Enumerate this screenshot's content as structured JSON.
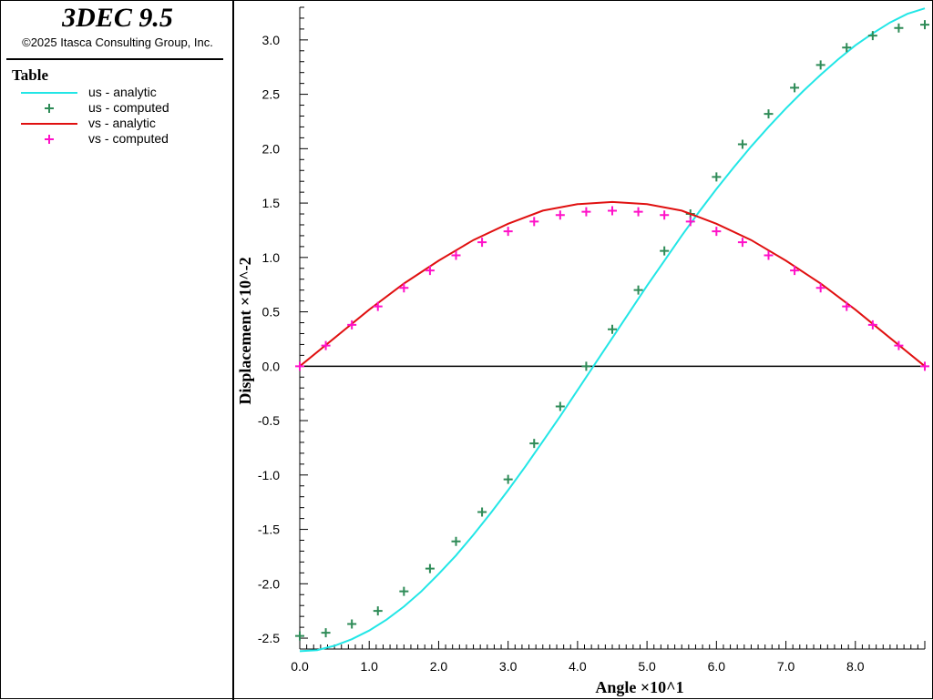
{
  "header": {
    "app_title": "3DEC 9.5",
    "copyright": "©2025 Itasca Consulting Group, Inc."
  },
  "legend": {
    "heading": "Table",
    "items": [
      {
        "label": "us - analytic",
        "kind": "line",
        "color": "#22e6e6"
      },
      {
        "label": "us - computed",
        "kind": "marker",
        "color": "#2e8b57"
      },
      {
        "label": "vs - analytic",
        "kind": "line",
        "color": "#e01010"
      },
      {
        "label": "vs - computed",
        "kind": "marker",
        "color": "#ff10c8"
      }
    ]
  },
  "chart_data": {
    "type": "line",
    "xlabel": "Angle ×10^1",
    "ylabel": "Displacement ×10^-2",
    "xlim": [
      0.0,
      9.0
    ],
    "ylim": [
      -2.6,
      3.3
    ],
    "xticks": [
      "0.0",
      "1.0",
      "2.0",
      "3.0",
      "4.0",
      "5.0",
      "6.0",
      "7.0",
      "8.0"
    ],
    "yticks": [
      "-2.5",
      "-2.0",
      "-1.5",
      "-1.0",
      "-0.5",
      "0.0",
      "0.5",
      "1.0",
      "1.5",
      "2.0",
      "2.5",
      "3.0"
    ],
    "grid": false,
    "legend_position": "left-panel",
    "series": [
      {
        "name": "us - analytic",
        "kind": "line",
        "color": "#22e6e6",
        "x": [
          0.0,
          0.25,
          0.5,
          0.75,
          1.0,
          1.25,
          1.5,
          1.75,
          2.0,
          2.25,
          2.5,
          2.75,
          3.0,
          3.25,
          3.5,
          3.75,
          4.0,
          4.25,
          4.5,
          4.75,
          5.0,
          5.25,
          5.5,
          5.75,
          6.0,
          6.25,
          6.5,
          6.75,
          7.0,
          7.25,
          7.5,
          7.75,
          8.0,
          8.25,
          8.5,
          8.75,
          9.0
        ],
        "y": [
          -2.62,
          -2.61,
          -2.57,
          -2.51,
          -2.43,
          -2.33,
          -2.21,
          -2.07,
          -1.91,
          -1.74,
          -1.55,
          -1.35,
          -1.14,
          -0.92,
          -0.69,
          -0.46,
          -0.22,
          0.02,
          0.26,
          0.5,
          0.74,
          0.97,
          1.2,
          1.42,
          1.63,
          1.83,
          2.02,
          2.2,
          2.37,
          2.53,
          2.68,
          2.82,
          2.95,
          3.06,
          3.16,
          3.24,
          3.29
        ]
      },
      {
        "name": "us - computed",
        "kind": "marker",
        "color": "#2e8b57",
        "x": [
          0.0,
          0.375,
          0.75,
          1.125,
          1.5,
          1.875,
          2.25,
          2.625,
          3.0,
          3.375,
          3.75,
          4.125,
          4.5,
          4.875,
          5.25,
          5.625,
          6.0,
          6.375,
          6.75,
          7.125,
          7.5,
          7.875,
          8.25,
          8.625,
          9.0
        ],
        "y": [
          -2.48,
          -2.45,
          -2.37,
          -2.25,
          -2.07,
          -1.86,
          -1.61,
          -1.34,
          -1.04,
          -0.71,
          -0.37,
          0.0,
          0.34,
          0.7,
          1.06,
          1.4,
          1.74,
          2.04,
          2.32,
          2.56,
          2.77,
          2.93,
          3.04,
          3.11,
          3.14
        ]
      },
      {
        "name": "vs - analytic",
        "kind": "line",
        "color": "#e01010",
        "x": [
          0.0,
          0.5,
          1.0,
          1.5,
          2.0,
          2.5,
          3.0,
          3.5,
          4.0,
          4.5,
          5.0,
          5.5,
          6.0,
          6.5,
          7.0,
          7.5,
          8.0,
          8.5,
          9.0
        ],
        "y": [
          0.0,
          0.26,
          0.52,
          0.76,
          0.97,
          1.16,
          1.31,
          1.43,
          1.49,
          1.51,
          1.49,
          1.43,
          1.31,
          1.16,
          0.97,
          0.76,
          0.52,
          0.26,
          0.0
        ]
      },
      {
        "name": "vs - computed",
        "kind": "marker",
        "color": "#ff10c8",
        "x": [
          0.0,
          0.375,
          0.75,
          1.125,
          1.5,
          1.875,
          2.25,
          2.625,
          3.0,
          3.375,
          3.75,
          4.125,
          4.5,
          4.875,
          5.25,
          5.625,
          6.0,
          6.375,
          6.75,
          7.125,
          7.5,
          7.875,
          8.25,
          8.625,
          9.0
        ],
        "y": [
          0.0,
          0.19,
          0.38,
          0.55,
          0.72,
          0.88,
          1.02,
          1.14,
          1.24,
          1.33,
          1.39,
          1.42,
          1.43,
          1.42,
          1.39,
          1.33,
          1.24,
          1.14,
          1.02,
          0.88,
          0.72,
          0.55,
          0.38,
          0.19,
          0.0
        ]
      }
    ]
  }
}
